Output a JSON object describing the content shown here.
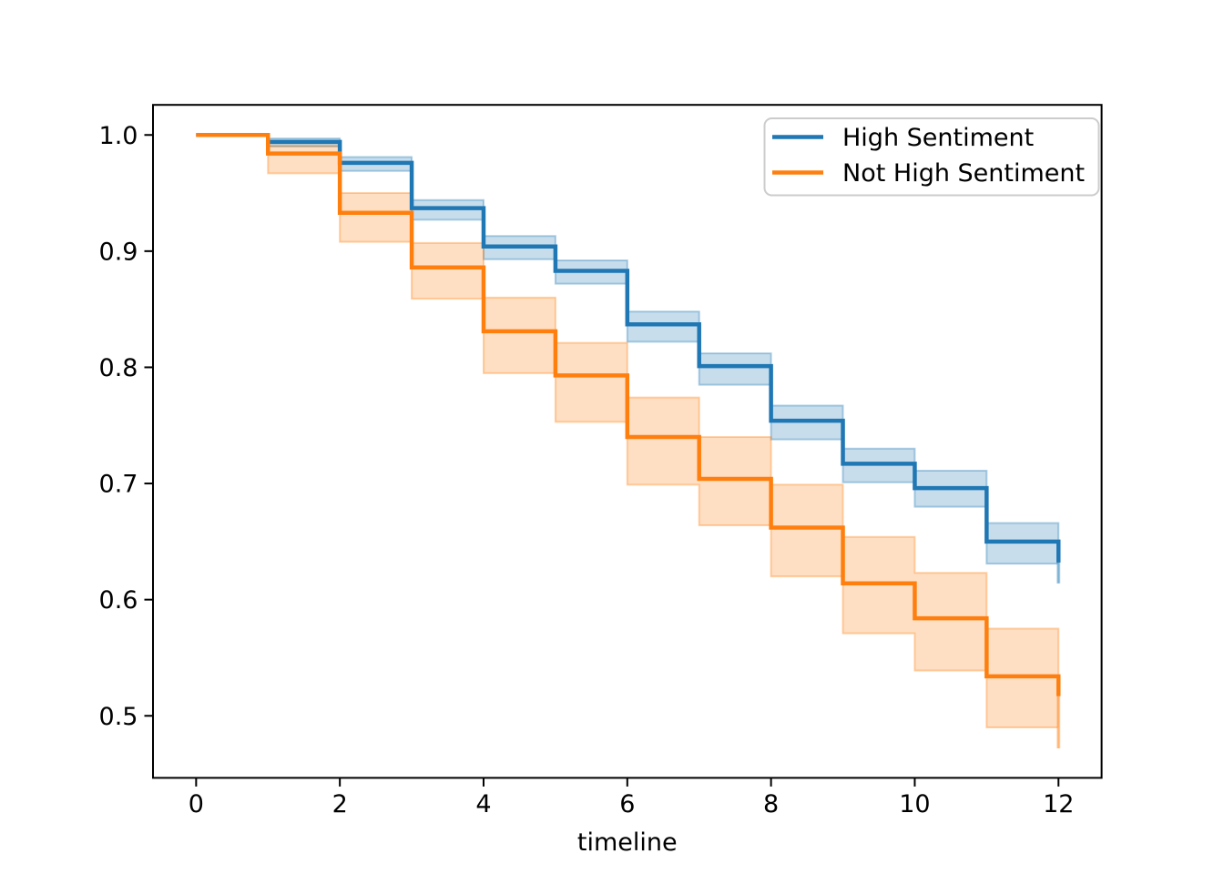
{
  "figure": {
    "background": "#ffffff",
    "axis_color": "#000000",
    "text_color": "#000000",
    "legend_border_color": "#cccccc"
  },
  "chart_data": {
    "type": "line",
    "subtype": "kaplan-meier-survival-step",
    "step_mode": "post",
    "title": "",
    "xlabel": "timeline",
    "ylabel": "",
    "grid": false,
    "legend_position": "upper right",
    "x_ticks": [
      0,
      2,
      4,
      6,
      8,
      10,
      12
    ],
    "y_ticks": [
      1.0,
      0.9,
      0.8,
      0.7,
      0.6,
      0.5
    ],
    "xlim": [
      -0.6,
      12.6
    ],
    "ylim": [
      0.4466,
      1.0259
    ],
    "ci_alpha": 0.25,
    "x": [
      0,
      1,
      2,
      3,
      4,
      5,
      6,
      7,
      8,
      9,
      10,
      11,
      12
    ],
    "series": [
      {
        "name": "High Sentiment",
        "color": "#1f77b4",
        "values": [
          1.0,
          0.994,
          0.976,
          0.937,
          0.904,
          0.883,
          0.837,
          0.801,
          0.754,
          0.717,
          0.696,
          0.65,
          0.632
        ],
        "ci_lower": [
          1.0,
          0.99,
          0.969,
          0.927,
          0.893,
          0.872,
          0.822,
          0.785,
          0.738,
          0.701,
          0.68,
          0.631,
          0.614
        ],
        "ci_upper": [
          1.0,
          0.997,
          0.981,
          0.944,
          0.913,
          0.892,
          0.848,
          0.812,
          0.767,
          0.73,
          0.711,
          0.666,
          0.651
        ]
      },
      {
        "name": "Not High Sentiment",
        "color": "#ff7f0e",
        "values": [
          1.0,
          0.984,
          0.933,
          0.886,
          0.831,
          0.793,
          0.74,
          0.704,
          0.662,
          0.614,
          0.584,
          0.534,
          0.517
        ],
        "ci_lower": [
          1.0,
          0.967,
          0.908,
          0.859,
          0.795,
          0.753,
          0.699,
          0.664,
          0.62,
          0.571,
          0.539,
          0.49,
          0.472
        ],
        "ci_upper": [
          1.0,
          0.991,
          0.95,
          0.907,
          0.86,
          0.821,
          0.774,
          0.74,
          0.699,
          0.654,
          0.623,
          0.575,
          0.534
        ]
      }
    ]
  }
}
